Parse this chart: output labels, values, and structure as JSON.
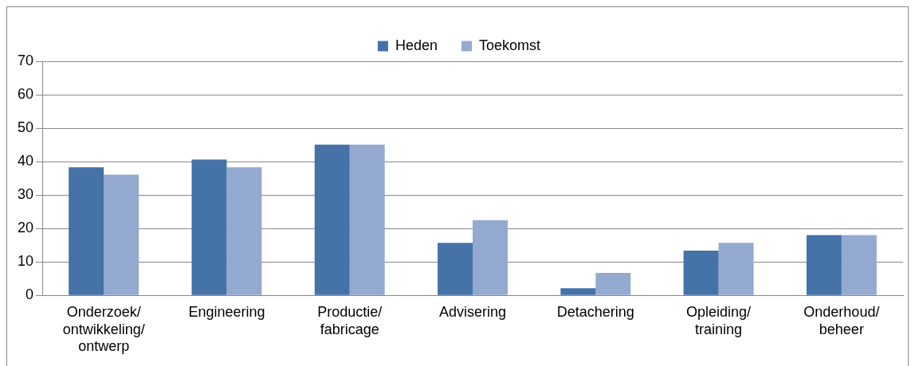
{
  "chart_data": {
    "type": "bar",
    "categories": [
      "Onderzoek/ ontwikkeling/ ontwerp",
      "Engineering",
      "Productie/ fabricage",
      "Advisering",
      "Detachering",
      "Opleiding/ training",
      "Onderhoud/ beheer"
    ],
    "series": [
      {
        "name": "Heden",
        "color": "#4572a7",
        "values": [
          38.3,
          40.6,
          45.1,
          15.7,
          2.1,
          13.4,
          18.0
        ]
      },
      {
        "name": "Toekomst",
        "color": "#93a9d0",
        "values": [
          36.1,
          38.3,
          45.1,
          22.5,
          6.7,
          15.7,
          18.0
        ]
      }
    ],
    "ylim": [
      0,
      70
    ],
    "yticks": [
      0,
      10,
      20,
      30,
      40,
      50,
      60,
      70
    ],
    "grid": "y",
    "legend": "top"
  }
}
